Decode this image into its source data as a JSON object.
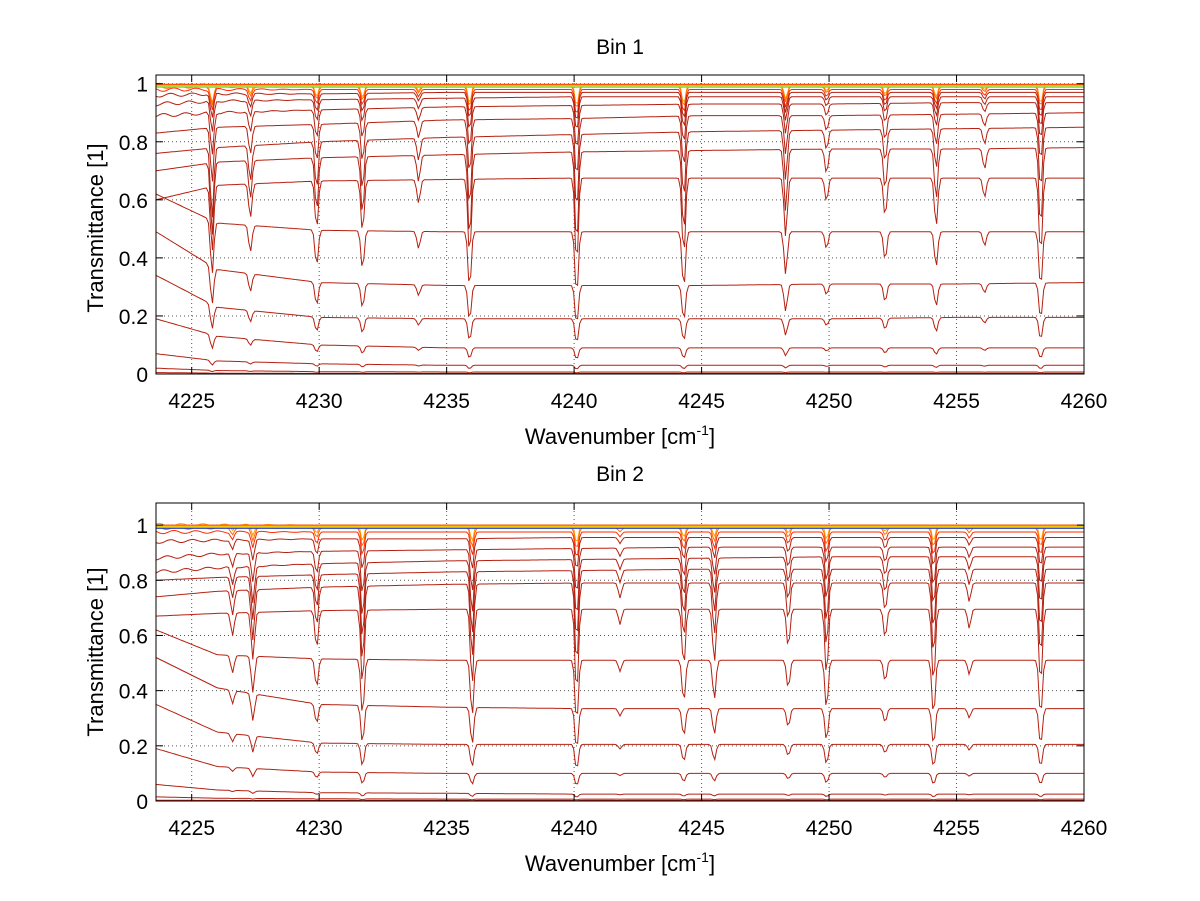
{
  "chart_data": [
    {
      "type": "line",
      "title": "Bin 1",
      "xlabel": "Wavenumber [cm",
      "xlabel_sup": "-1",
      "xlabel_tail": "]",
      "ylabel": "Transmittance [1]",
      "xlim": [
        4223.6,
        4260
      ],
      "ylim": [
        0,
        1.03
      ],
      "xticks": [
        4225,
        4230,
        4235,
        4240,
        4245,
        4250,
        4255,
        4260
      ],
      "xtick_labels": [
        "4225",
        "4230",
        "4235",
        "4240",
        "4245",
        "4250",
        "4255",
        "4260"
      ],
      "yticks": [
        0,
        0.2,
        0.4,
        0.6,
        0.8,
        1
      ],
      "ytick_labels": [
        "0",
        "0.2",
        "0.4",
        "0.6",
        "0.8",
        "1"
      ],
      "grid": true,
      "grid_style": "dotted",
      "lines": [
        {
          "x": [
            4223.6,
            4226,
            4230,
            4235,
            4240,
            4245,
            4250,
            4255,
            4260
          ],
          "y": [
            0.995,
            0.995,
            0.995,
            0.995,
            0.995,
            0.995,
            0.995,
            0.995,
            0.995
          ]
        },
        {
          "x": [
            4223.6,
            4226,
            4230,
            4235,
            4240,
            4245,
            4250,
            4255,
            4260
          ],
          "y": [
            0.99,
            0.99,
            0.99,
            0.99,
            0.99,
            0.99,
            0.99,
            0.99,
            0.99
          ]
        },
        {
          "x": [
            4223.6,
            4226,
            4230,
            4235,
            4240,
            4245,
            4250,
            4255,
            4260
          ],
          "y": [
            0.98,
            0.98,
            0.98,
            0.98,
            0.98,
            0.98,
            0.98,
            0.98,
            0.98
          ]
        },
        {
          "x": [
            4223.6,
            4226,
            4230,
            4235,
            4240,
            4245,
            4250,
            4255,
            4260
          ],
          "y": [
            0.96,
            0.965,
            0.965,
            0.97,
            0.97,
            0.97,
            0.97,
            0.97,
            0.97
          ]
        },
        {
          "x": [
            4223.6,
            4226,
            4230,
            4235,
            4240,
            4245,
            4250,
            4255,
            4260
          ],
          "y": [
            0.93,
            0.94,
            0.945,
            0.95,
            0.955,
            0.955,
            0.955,
            0.955,
            0.955
          ]
        },
        {
          "x": [
            4223.6,
            4226,
            4230,
            4235,
            4240,
            4245,
            4250,
            4255,
            4260
          ],
          "y": [
            0.89,
            0.9,
            0.91,
            0.92,
            0.925,
            0.93,
            0.93,
            0.935,
            0.935
          ]
        },
        {
          "x": [
            4223.6,
            4226,
            4230,
            4235,
            4240,
            4245,
            4250,
            4255,
            4260
          ],
          "y": [
            0.83,
            0.85,
            0.86,
            0.875,
            0.88,
            0.89,
            0.89,
            0.895,
            0.9
          ]
        },
        {
          "x": [
            4223.6,
            4226,
            4230,
            4235,
            4240,
            4245,
            4250,
            4255,
            4260
          ],
          "y": [
            0.76,
            0.78,
            0.8,
            0.815,
            0.825,
            0.835,
            0.84,
            0.845,
            0.85
          ]
        },
        {
          "x": [
            4223.6,
            4226,
            4230,
            4235,
            4240,
            4245,
            4250,
            4255,
            4260
          ],
          "y": [
            0.7,
            0.73,
            0.745,
            0.755,
            0.765,
            0.77,
            0.775,
            0.775,
            0.78
          ]
        },
        {
          "x": [
            4223.6,
            4226,
            4230,
            4235,
            4240,
            4245,
            4250,
            4255,
            4260
          ],
          "y": [
            0.6,
            0.65,
            0.665,
            0.67,
            0.675,
            0.675,
            0.675,
            0.675,
            0.675
          ]
        },
        {
          "x": [
            4223.6,
            4226,
            4230,
            4235,
            4240,
            4245,
            4250,
            4255,
            4260
          ],
          "y": [
            0.62,
            0.52,
            0.495,
            0.49,
            0.49,
            0.49,
            0.49,
            0.49,
            0.49
          ]
        },
        {
          "x": [
            4223.6,
            4226,
            4230,
            4235,
            4240,
            4245,
            4250,
            4255,
            4260
          ],
          "y": [
            0.49,
            0.36,
            0.315,
            0.305,
            0.305,
            0.305,
            0.31,
            0.31,
            0.315
          ]
        },
        {
          "x": [
            4223.6,
            4226,
            4230,
            4235,
            4240,
            4245,
            4250,
            4255,
            4260
          ],
          "y": [
            0.34,
            0.23,
            0.195,
            0.19,
            0.19,
            0.19,
            0.19,
            0.195,
            0.195
          ]
        },
        {
          "x": [
            4223.6,
            4226,
            4230,
            4235,
            4240,
            4245,
            4250,
            4255,
            4260
          ],
          "y": [
            0.19,
            0.13,
            0.1,
            0.09,
            0.09,
            0.09,
            0.09,
            0.09,
            0.09
          ]
        },
        {
          "x": [
            4223.6,
            4226,
            4230,
            4235,
            4240,
            4245,
            4250,
            4255,
            4260
          ],
          "y": [
            0.07,
            0.045,
            0.035,
            0.03,
            0.03,
            0.03,
            0.03,
            0.03,
            0.03
          ]
        },
        {
          "x": [
            4223.6,
            4226,
            4230,
            4235,
            4240,
            4245,
            4250,
            4255,
            4260
          ],
          "y": [
            0.02,
            0.012,
            0.008,
            0.007,
            0.007,
            0.007,
            0.007,
            0.007,
            0.007
          ]
        },
        {
          "x": [
            4223.6,
            4226,
            4230,
            4235,
            4240,
            4245,
            4250,
            4255,
            4260
          ],
          "y": [
            0.005,
            0.003,
            0.002,
            0.002,
            0.002,
            0.002,
            0.002,
            0.002,
            0.002
          ]
        }
      ],
      "absorption_lines": [
        {
          "x": 4225.8,
          "depth": 0.35
        },
        {
          "x": 4227.3,
          "depth": 0.18
        },
        {
          "x": 4229.9,
          "depth": 0.25
        },
        {
          "x": 4231.7,
          "depth": 0.27
        },
        {
          "x": 4233.9,
          "depth": 0.12
        },
        {
          "x": 4235.9,
          "depth": 0.4
        },
        {
          "x": 4240.1,
          "depth": 0.45
        },
        {
          "x": 4244.3,
          "depth": 0.4
        },
        {
          "x": 4248.3,
          "depth": 0.3
        },
        {
          "x": 4249.9,
          "depth": 0.12
        },
        {
          "x": 4252.2,
          "depth": 0.2
        },
        {
          "x": 4254.2,
          "depth": 0.25
        },
        {
          "x": 4256.1,
          "depth": 0.1
        },
        {
          "x": 4258.3,
          "depth": 0.4
        }
      ],
      "line_color": "#b52010",
      "top_line_colors": [
        "#ff2a00",
        "#ff6a00",
        "#ffa000",
        "#ffd000",
        "#c0e020",
        "#40d8c0"
      ]
    },
    {
      "type": "line",
      "title": "Bin 2",
      "xlabel": "Wavenumber [cm",
      "xlabel_sup": "-1",
      "xlabel_tail": "]",
      "ylabel": "Transmittance [1]",
      "xlim": [
        4223.6,
        4260
      ],
      "ylim": [
        0,
        1.08
      ],
      "xticks": [
        4225,
        4230,
        4235,
        4240,
        4245,
        4250,
        4255,
        4260
      ],
      "xtick_labels": [
        "4225",
        "4230",
        "4235",
        "4240",
        "4245",
        "4250",
        "4255",
        "4260"
      ],
      "yticks": [
        0,
        0.2,
        0.4,
        0.6,
        0.8,
        1
      ],
      "ytick_labels": [
        "0",
        "0.2",
        "0.4",
        "0.6",
        "0.8",
        "1"
      ],
      "grid": true,
      "grid_style": "dotted",
      "lines": [
        {
          "x": [
            4223.6,
            4226,
            4230,
            4235,
            4240,
            4245,
            4250,
            4255,
            4260
          ],
          "y": [
            1.0,
            1.0,
            1.0,
            1.0,
            1.0,
            1.0,
            1.0,
            1.0,
            1.0
          ]
        },
        {
          "x": [
            4223.6,
            4226,
            4230,
            4235,
            4240,
            4245,
            4250,
            4255,
            4260
          ],
          "y": [
            0.99,
            0.99,
            0.99,
            0.99,
            0.99,
            0.99,
            0.99,
            0.99,
            0.99
          ]
        },
        {
          "x": [
            4223.6,
            4226,
            4230,
            4235,
            4240,
            4245,
            4250,
            4255,
            4260
          ],
          "y": [
            0.975,
            0.975,
            0.975,
            0.975,
            0.975,
            0.975,
            0.975,
            0.975,
            0.975
          ]
        },
        {
          "x": [
            4223.6,
            4226,
            4230,
            4235,
            4240,
            4245,
            4250,
            4255,
            4260
          ],
          "y": [
            0.94,
            0.945,
            0.95,
            0.95,
            0.955,
            0.955,
            0.955,
            0.955,
            0.955
          ]
        },
        {
          "x": [
            4223.6,
            4226,
            4230,
            4235,
            4240,
            4245,
            4250,
            4255,
            4260
          ],
          "y": [
            0.88,
            0.895,
            0.905,
            0.91,
            0.915,
            0.92,
            0.92,
            0.92,
            0.92
          ]
        },
        {
          "x": [
            4223.6,
            4226,
            4230,
            4235,
            4240,
            4245,
            4250,
            4255,
            4260
          ],
          "y": [
            0.83,
            0.845,
            0.86,
            0.87,
            0.875,
            0.88,
            0.885,
            0.885,
            0.885
          ]
        },
        {
          "x": [
            4223.6,
            4226,
            4230,
            4235,
            4240,
            4245,
            4250,
            4255,
            4260
          ],
          "y": [
            0.8,
            0.81,
            0.82,
            0.83,
            0.835,
            0.84,
            0.84,
            0.84,
            0.84
          ]
        },
        {
          "x": [
            4223.6,
            4226,
            4230,
            4235,
            4240,
            4245,
            4250,
            4255,
            4260
          ],
          "y": [
            0.74,
            0.76,
            0.775,
            0.785,
            0.79,
            0.79,
            0.79,
            0.79,
            0.79
          ]
        },
        {
          "x": [
            4223.6,
            4226,
            4230,
            4235,
            4240,
            4245,
            4250,
            4255,
            4260
          ],
          "y": [
            0.67,
            0.68,
            0.69,
            0.695,
            0.695,
            0.695,
            0.695,
            0.695,
            0.695
          ]
        },
        {
          "x": [
            4223.6,
            4226,
            4230,
            4235,
            4240,
            4245,
            4250,
            4255,
            4260
          ],
          "y": [
            0.62,
            0.53,
            0.515,
            0.51,
            0.51,
            0.51,
            0.51,
            0.51,
            0.51
          ]
        },
        {
          "x": [
            4223.6,
            4226,
            4230,
            4235,
            4240,
            4245,
            4250,
            4255,
            4260
          ],
          "y": [
            0.52,
            0.41,
            0.35,
            0.34,
            0.335,
            0.335,
            0.335,
            0.335,
            0.335
          ]
        },
        {
          "x": [
            4223.6,
            4226,
            4230,
            4235,
            4240,
            4245,
            4250,
            4255,
            4260
          ],
          "y": [
            0.35,
            0.25,
            0.21,
            0.205,
            0.205,
            0.205,
            0.205,
            0.205,
            0.205
          ]
        },
        {
          "x": [
            4223.6,
            4226,
            4230,
            4235,
            4240,
            4245,
            4250,
            4255,
            4260
          ],
          "y": [
            0.19,
            0.125,
            0.105,
            0.1,
            0.1,
            0.1,
            0.1,
            0.1,
            0.1
          ]
        },
        {
          "x": [
            4223.6,
            4226,
            4230,
            4235,
            4240,
            4245,
            4250,
            4255,
            4260
          ],
          "y": [
            0.06,
            0.04,
            0.03,
            0.028,
            0.025,
            0.025,
            0.025,
            0.025,
            0.025
          ]
        },
        {
          "x": [
            4223.6,
            4226,
            4230,
            4235,
            4240,
            4245,
            4250,
            4255,
            4260
          ],
          "y": [
            0.015,
            0.01,
            0.008,
            0.007,
            0.007,
            0.007,
            0.007,
            0.007,
            0.007
          ]
        },
        {
          "x": [
            4223.6,
            4226,
            4230,
            4235,
            4240,
            4245,
            4250,
            4255,
            4260
          ],
          "y": [
            0.003,
            0.002,
            0.002,
            0.002,
            0.002,
            0.002,
            0.002,
            0.002,
            0.002
          ]
        }
      ],
      "absorption_lines": [
        {
          "x": 4226.6,
          "depth": 0.12
        },
        {
          "x": 4227.4,
          "depth": 0.25
        },
        {
          "x": 4229.9,
          "depth": 0.2
        },
        {
          "x": 4231.7,
          "depth": 0.4
        },
        {
          "x": 4236.0,
          "depth": 0.4
        },
        {
          "x": 4240.1,
          "depth": 0.45
        },
        {
          "x": 4241.8,
          "depth": 0.08
        },
        {
          "x": 4244.3,
          "depth": 0.3
        },
        {
          "x": 4245.5,
          "depth": 0.28
        },
        {
          "x": 4248.4,
          "depth": 0.2
        },
        {
          "x": 4249.9,
          "depth": 0.35
        },
        {
          "x": 4252.2,
          "depth": 0.15
        },
        {
          "x": 4254.1,
          "depth": 0.4
        },
        {
          "x": 4255.5,
          "depth": 0.1
        },
        {
          "x": 4258.3,
          "depth": 0.4
        }
      ],
      "line_color": "#b52010",
      "top_line_colors": [
        "#ff2a00",
        "#ff6a00",
        "#ffa000",
        "#ffd000",
        "#c0e020",
        "#40d8c0",
        "#2040c0"
      ]
    }
  ]
}
